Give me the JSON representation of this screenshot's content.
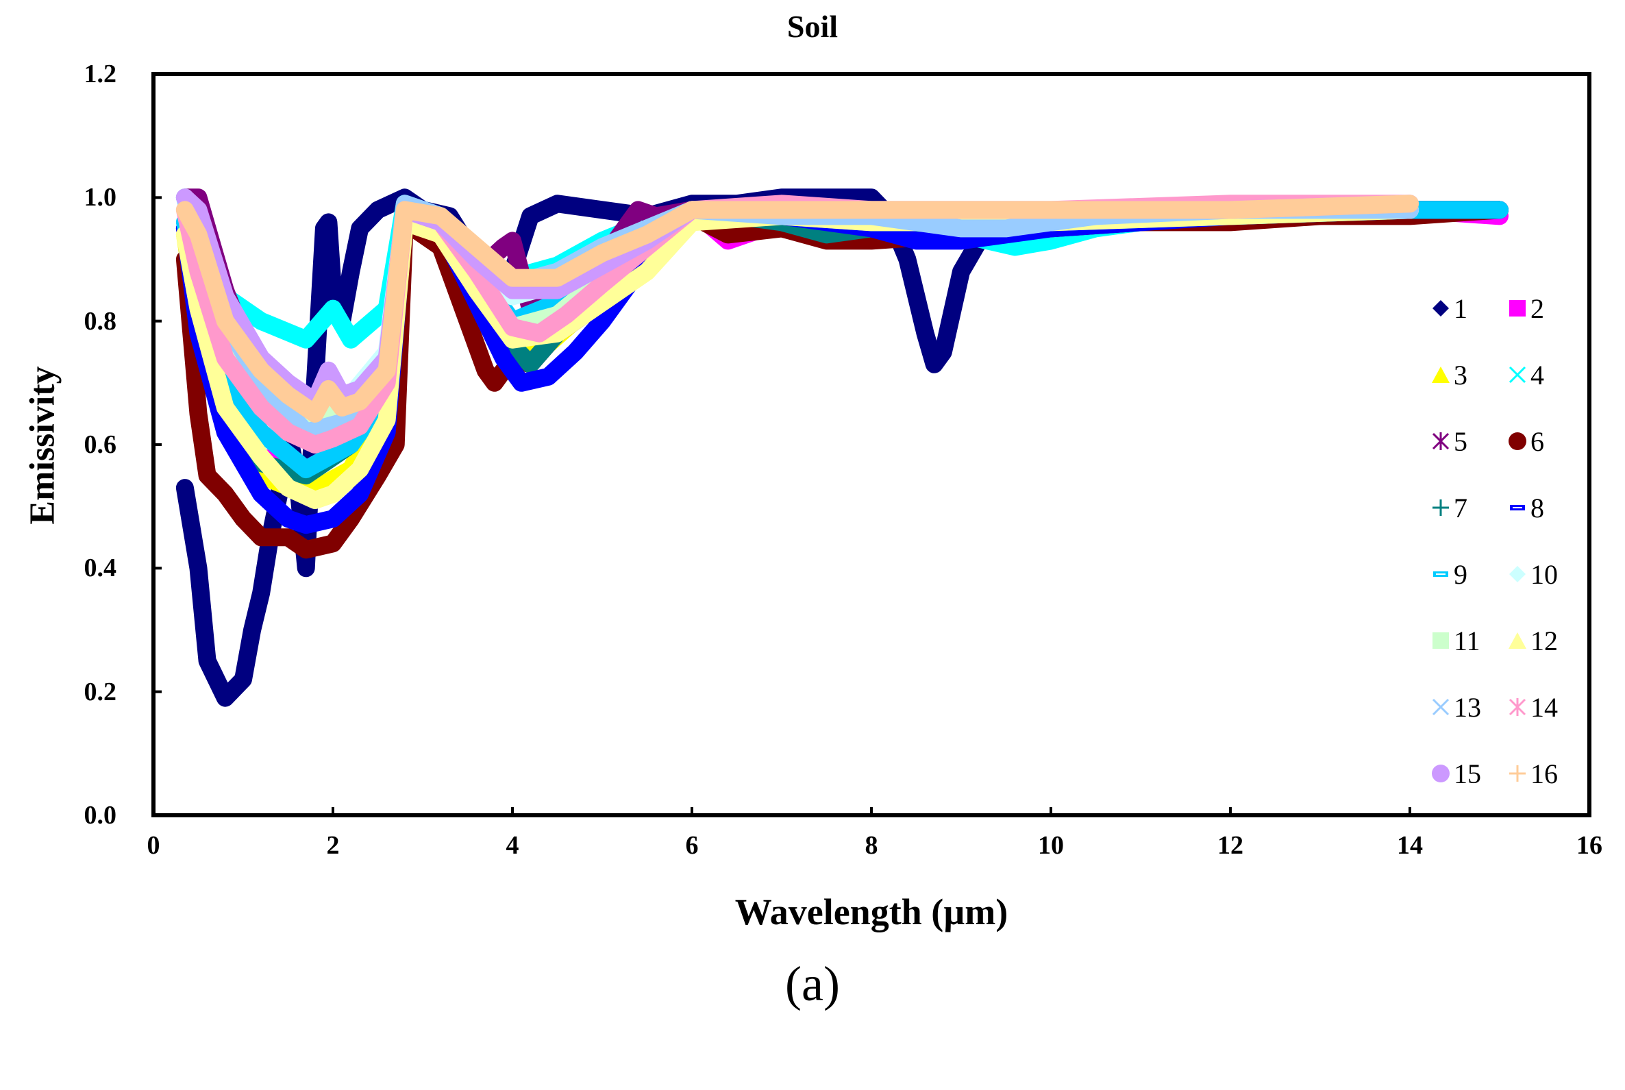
{
  "figure": {
    "title": "Soil",
    "ylabel": "Emissivity",
    "xlabel": "Wavelength (µm)",
    "caption": "(a)"
  },
  "axes": {
    "yticks": [
      "0.0",
      "0.2",
      "0.4",
      "0.6",
      "0.8",
      "1.0",
      "1.2"
    ],
    "xticks": [
      "0",
      "2",
      "4",
      "6",
      "8",
      "10",
      "12",
      "14",
      "16"
    ]
  },
  "legend": [
    {
      "label": "1",
      "marker": "diamond",
      "color": "#000080"
    },
    {
      "label": "2",
      "marker": "square",
      "color": "#FF00FF"
    },
    {
      "label": "3",
      "marker": "triangle",
      "color": "#FFFF00"
    },
    {
      "label": "4",
      "marker": "x",
      "color": "#00FFFF"
    },
    {
      "label": "5",
      "marker": "star",
      "color": "#800080"
    },
    {
      "label": "6",
      "marker": "circle",
      "color": "#800000"
    },
    {
      "label": "7",
      "marker": "plus",
      "color": "#008080"
    },
    {
      "label": "8",
      "marker": "dash",
      "color": "#0000FF"
    },
    {
      "label": "9",
      "marker": "dash",
      "color": "#00CCFF"
    },
    {
      "label": "10",
      "marker": "diamond",
      "color": "#CCFFFF"
    },
    {
      "label": "11",
      "marker": "square",
      "color": "#CCFFCC"
    },
    {
      "label": "12",
      "marker": "triangle",
      "color": "#FFFF99"
    },
    {
      "label": "13",
      "marker": "x",
      "color": "#99CCFF"
    },
    {
      "label": "14",
      "marker": "star",
      "color": "#FF99CC"
    },
    {
      "label": "15",
      "marker": "circle",
      "color": "#CC99FF"
    },
    {
      "label": "16",
      "marker": "plus",
      "color": "#FFCC99"
    }
  ],
  "chart_data": {
    "type": "line",
    "title": "Soil",
    "xlabel": "Wavelength (µm)",
    "ylabel": "Emissivity",
    "xlim": [
      0,
      16
    ],
    "ylim": [
      0.0,
      1.2
    ],
    "grid": false,
    "legend_position": "right-inside, 2 columns",
    "series": [
      {
        "name": "1",
        "color": "#000080",
        "x": [
          0.35,
          0.5,
          0.6,
          0.8,
          1.0,
          1.1,
          1.2,
          1.3,
          1.4,
          1.5,
          1.6,
          1.7,
          1.8,
          1.9,
          1.95,
          2.0,
          2.1,
          2.2,
          2.3,
          2.5,
          2.8,
          3.0,
          3.3,
          3.6,
          3.8,
          4.0,
          4.2,
          4.5,
          5.0,
          5.5,
          6.0,
          6.5,
          7.0,
          7.5,
          8.0,
          8.2,
          8.4,
          8.6,
          8.7,
          8.8,
          9.0,
          9.2,
          9.5,
          10,
          11,
          12,
          13,
          14,
          15
        ],
        "y": [
          0.53,
          0.4,
          0.25,
          0.19,
          0.22,
          0.3,
          0.36,
          0.45,
          0.52,
          0.62,
          0.55,
          0.4,
          0.7,
          0.95,
          0.96,
          0.85,
          0.8,
          0.88,
          0.95,
          0.98,
          1.0,
          0.98,
          0.97,
          0.9,
          0.86,
          0.88,
          0.97,
          0.99,
          0.98,
          0.97,
          0.99,
          0.99,
          1.0,
          1.0,
          1.0,
          0.97,
          0.9,
          0.78,
          0.73,
          0.75,
          0.88,
          0.93,
          0.95,
          0.96,
          0.97,
          0.98,
          0.98,
          0.98,
          0.98
        ]
      },
      {
        "name": "2",
        "color": "#FF00FF",
        "x": [
          0.35,
          0.5,
          0.8,
          1.2,
          1.7,
          2.2,
          2.6,
          2.8,
          3.2,
          3.6,
          4.0,
          4.4,
          5.0,
          5.5,
          6.0,
          6.4,
          7.0,
          8.0,
          9.0,
          10,
          11,
          12,
          13,
          14,
          15
        ],
        "y": [
          0.95,
          0.8,
          0.64,
          0.58,
          0.56,
          0.6,
          0.7,
          0.97,
          0.95,
          0.87,
          0.76,
          0.8,
          0.87,
          0.93,
          0.98,
          0.93,
          0.96,
          0.95,
          0.95,
          0.96,
          0.96,
          0.97,
          0.97,
          0.98,
          0.97
        ]
      },
      {
        "name": "3",
        "color": "#FFFF00",
        "x": [
          0.35,
          0.5,
          0.8,
          1.2,
          1.7,
          2.2,
          2.6,
          2.8,
          3.2,
          3.6,
          4.0,
          4.3,
          5.0,
          5.5,
          6.0,
          6.5,
          7.0,
          8.0,
          9.0,
          10,
          12,
          14,
          15
        ],
        "y": [
          0.94,
          0.8,
          0.62,
          0.55,
          0.52,
          0.56,
          0.67,
          0.96,
          0.94,
          0.85,
          0.74,
          0.75,
          0.84,
          0.9,
          0.97,
          0.95,
          0.97,
          0.96,
          0.96,
          0.96,
          0.97,
          0.98,
          0.98
        ]
      },
      {
        "name": "4",
        "color": "#00FFFF",
        "x": [
          0.35,
          0.5,
          0.8,
          1.2,
          1.7,
          2.0,
          2.2,
          2.6,
          2.8,
          3.2,
          3.6,
          4.0,
          4.5,
          5.0,
          5.5,
          6.0,
          7.0,
          8.0,
          9.0,
          9.6,
          10,
          10.5,
          11,
          12,
          14,
          15
        ],
        "y": [
          1.0,
          0.92,
          0.84,
          0.8,
          0.77,
          0.82,
          0.77,
          0.82,
          0.99,
          0.97,
          0.9,
          0.87,
          0.89,
          0.93,
          0.96,
          0.98,
          0.98,
          0.97,
          0.94,
          0.92,
          0.93,
          0.95,
          0.96,
          0.97,
          0.98,
          0.98
        ]
      },
      {
        "name": "5",
        "color": "#800080",
        "x": [
          0.35,
          0.5,
          0.8,
          1.2,
          1.7,
          2.2,
          2.6,
          2.8,
          3.2,
          3.6,
          3.9,
          4.0,
          4.2,
          4.5,
          5.0,
          5.4,
          5.6,
          6.0,
          7.0,
          8.0,
          9.0,
          10,
          12,
          14,
          15
        ],
        "y": [
          1.0,
          1.0,
          0.85,
          0.7,
          0.62,
          0.64,
          0.74,
          0.98,
          0.96,
          0.88,
          0.92,
          0.93,
          0.82,
          0.84,
          0.9,
          0.98,
          0.97,
          0.98,
          0.97,
          0.96,
          0.96,
          0.96,
          0.97,
          0.98,
          0.98
        ]
      },
      {
        "name": "6",
        "color": "#800000",
        "x": [
          0.35,
          0.5,
          0.6,
          0.8,
          1.0,
          1.2,
          1.5,
          1.7,
          2.0,
          2.2,
          2.5,
          2.7,
          2.8,
          3.2,
          3.5,
          3.7,
          3.8,
          4.0,
          4.2,
          4.5,
          5.0,
          5.5,
          6.0,
          6.4,
          7.0,
          7.5,
          8.0,
          9.0,
          10,
          11,
          12,
          13,
          14,
          15
        ],
        "y": [
          0.9,
          0.65,
          0.55,
          0.52,
          0.48,
          0.45,
          0.45,
          0.43,
          0.44,
          0.48,
          0.55,
          0.6,
          0.96,
          0.92,
          0.8,
          0.72,
          0.7,
          0.74,
          0.73,
          0.78,
          0.83,
          0.9,
          0.97,
          0.94,
          0.95,
          0.93,
          0.93,
          0.94,
          0.95,
          0.96,
          0.96,
          0.97,
          0.97,
          0.98
        ]
      },
      {
        "name": "7",
        "color": "#008080",
        "x": [
          0.35,
          0.5,
          0.8,
          1.2,
          1.7,
          2.2,
          2.6,
          2.8,
          3.2,
          3.6,
          4.0,
          4.2,
          4.5,
          5.0,
          5.5,
          6.0,
          7.0,
          7.5,
          8.0,
          9.0,
          10,
          12,
          14,
          15
        ],
        "y": [
          0.95,
          0.8,
          0.65,
          0.57,
          0.55,
          0.6,
          0.7,
          0.97,
          0.95,
          0.85,
          0.76,
          0.73,
          0.78,
          0.86,
          0.92,
          0.98,
          0.96,
          0.94,
          0.95,
          0.95,
          0.96,
          0.97,
          0.98,
          0.98
        ]
      },
      {
        "name": "8",
        "color": "#0000FF",
        "x": [
          0.35,
          0.5,
          0.8,
          1.2,
          1.5,
          1.7,
          2.0,
          2.3,
          2.6,
          2.8,
          3.2,
          3.6,
          3.9,
          4.1,
          4.4,
          4.7,
          5.0,
          5.5,
          6.0,
          7.0,
          8.0,
          8.5,
          9.0,
          9.5,
          10,
          12,
          14,
          15
        ],
        "y": [
          0.95,
          0.78,
          0.62,
          0.52,
          0.48,
          0.47,
          0.48,
          0.52,
          0.62,
          0.97,
          0.95,
          0.83,
          0.74,
          0.7,
          0.71,
          0.75,
          0.8,
          0.9,
          0.98,
          0.97,
          0.95,
          0.93,
          0.93,
          0.94,
          0.95,
          0.97,
          0.98,
          0.98
        ]
      },
      {
        "name": "9",
        "color": "#00CCFF",
        "x": [
          0.35,
          0.5,
          0.8,
          1.2,
          1.7,
          2.2,
          2.6,
          2.8,
          3.2,
          3.6,
          4.0,
          4.5,
          5.0,
          5.5,
          6.0,
          7.0,
          8.0,
          9.0,
          10,
          12,
          14,
          15
        ],
        "y": [
          0.96,
          0.85,
          0.7,
          0.62,
          0.56,
          0.6,
          0.68,
          0.97,
          0.96,
          0.88,
          0.8,
          0.83,
          0.88,
          0.93,
          0.98,
          0.97,
          0.96,
          0.96,
          0.96,
          0.97,
          0.98,
          0.98
        ]
      },
      {
        "name": "10",
        "color": "#CCFFFF",
        "x": [
          0.35,
          0.5,
          0.8,
          1.2,
          1.7,
          2.2,
          2.6,
          2.8,
          3.2,
          3.6,
          4.0,
          4.5,
          5.0,
          6.0,
          8.0,
          10,
          12,
          14
        ],
        "y": [
          1.0,
          0.93,
          0.8,
          0.72,
          0.66,
          0.68,
          0.75,
          0.98,
          0.97,
          0.9,
          0.84,
          0.86,
          0.9,
          0.98,
          0.97,
          0.97,
          0.98,
          0.98
        ]
      },
      {
        "name": "11",
        "color": "#CCFFCC",
        "x": [
          0.35,
          0.5,
          0.8,
          1.2,
          1.7,
          2.2,
          2.6,
          2.8,
          3.2,
          3.6,
          4.0,
          4.5,
          5.0,
          6.0,
          8.0,
          10,
          12,
          14
        ],
        "y": [
          0.98,
          0.9,
          0.78,
          0.7,
          0.64,
          0.66,
          0.73,
          0.97,
          0.96,
          0.88,
          0.79,
          0.81,
          0.87,
          0.97,
          0.97,
          0.97,
          0.98,
          0.98
        ]
      },
      {
        "name": "12",
        "color": "#FFFF99",
        "x": [
          0.35,
          0.5,
          0.8,
          1.2,
          1.5,
          1.8,
          2.0,
          2.3,
          2.6,
          2.8,
          3.2,
          3.6,
          4.0,
          4.5,
          5.0,
          5.5,
          6.0,
          7.0,
          8.0,
          10,
          12,
          14
        ],
        "y": [
          0.94,
          0.82,
          0.66,
          0.58,
          0.53,
          0.51,
          0.52,
          0.56,
          0.64,
          0.96,
          0.94,
          0.85,
          0.77,
          0.78,
          0.83,
          0.88,
          0.96,
          0.97,
          0.96,
          0.96,
          0.97,
          0.98
        ]
      },
      {
        "name": "13",
        "color": "#99CCFF",
        "x": [
          0.35,
          0.5,
          0.8,
          1.2,
          1.7,
          2.2,
          2.6,
          2.8,
          3.2,
          3.6,
          4.0,
          4.5,
          5.0,
          5.5,
          6.0,
          7.0,
          8.0,
          8.5,
          9.0,
          9.5,
          10,
          10.5,
          12,
          14
        ],
        "y": [
          1.0,
          0.92,
          0.8,
          0.7,
          0.62,
          0.64,
          0.72,
          0.99,
          0.97,
          0.9,
          0.86,
          0.88,
          0.92,
          0.95,
          0.98,
          0.97,
          0.97,
          0.96,
          0.95,
          0.95,
          0.96,
          0.97,
          0.98,
          0.98
        ]
      },
      {
        "name": "14",
        "color": "#FF99CC",
        "x": [
          0.35,
          0.5,
          0.8,
          1.2,
          1.5,
          1.8,
          2.0,
          2.3,
          2.6,
          2.8,
          3.2,
          3.6,
          4.0,
          4.3,
          4.6,
          5.0,
          5.5,
          6.0,
          7.0,
          8.0,
          10,
          12,
          14
        ],
        "y": [
          0.98,
          0.88,
          0.74,
          0.66,
          0.62,
          0.6,
          0.61,
          0.63,
          0.7,
          0.98,
          0.96,
          0.88,
          0.79,
          0.78,
          0.81,
          0.86,
          0.92,
          0.98,
          0.99,
          0.98,
          0.98,
          0.99,
          0.99
        ]
      },
      {
        "name": "15",
        "color": "#CC99FF",
        "x": [
          0.35,
          0.5,
          0.8,
          1.2,
          1.5,
          1.8,
          1.95,
          2.1,
          2.3,
          2.6,
          2.8,
          3.2,
          3.6,
          4.0,
          4.5,
          5.0,
          5.5,
          6.0,
          7.0,
          8.0,
          10,
          12,
          14
        ],
        "y": [
          1.0,
          0.98,
          0.84,
          0.74,
          0.7,
          0.67,
          0.72,
          0.68,
          0.69,
          0.74,
          0.98,
          0.96,
          0.9,
          0.85,
          0.85,
          0.89,
          0.93,
          0.98,
          0.98,
          0.98,
          0.98,
          0.98,
          0.99
        ]
      },
      {
        "name": "16",
        "color": "#FFCC99",
        "x": [
          0.35,
          0.5,
          0.8,
          1.2,
          1.5,
          1.8,
          1.95,
          2.1,
          2.3,
          2.6,
          2.8,
          3.2,
          3.6,
          4.0,
          4.5,
          5.0,
          5.5,
          6.0,
          7.0,
          8.0,
          10,
          12,
          14
        ],
        "y": [
          0.98,
          0.94,
          0.8,
          0.72,
          0.68,
          0.65,
          0.69,
          0.66,
          0.67,
          0.72,
          0.98,
          0.97,
          0.92,
          0.87,
          0.87,
          0.91,
          0.94,
          0.98,
          0.98,
          0.98,
          0.98,
          0.98,
          0.99
        ]
      }
    ]
  }
}
